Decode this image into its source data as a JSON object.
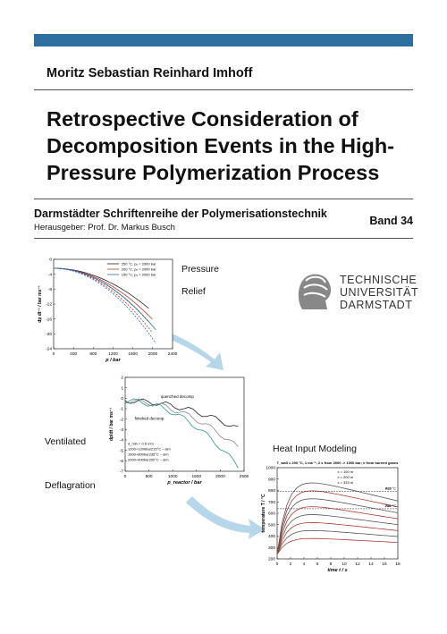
{
  "header": {
    "author": "Moritz Sebastian Reinhard Imhoff"
  },
  "title": {
    "lines": [
      "Retrospective Consideration of",
      "Decomposition Events in the High-",
      "Pressure Polymerization Process"
    ]
  },
  "series": {
    "name": "Darmstädter Schriftenreihe der Polymerisationstechnik",
    "editor": "Herausgeber: Prof. Dr. Markus Busch",
    "volume": "Band 34"
  },
  "logo": {
    "lines": [
      "TECHNISCHE",
      "UNIVERSITÄT",
      "DARMSTADT"
    ]
  },
  "figures": [
    {
      "caption": [
        "Pressure",
        "Relief"
      ],
      "xlabel": "p / bar",
      "ylabel": "dp dt⁻¹ / bar ms⁻¹",
      "xticks": [
        0,
        400,
        800,
        1200,
        1600,
        2000,
        2400
      ],
      "yticks": [
        0,
        -4,
        -8,
        -12,
        -16,
        -20,
        -24
      ],
      "legend": [
        "250 °C, p₀ = 2000 bar",
        "200 °C, p₀ = 2000 bar",
        "150 °C, p₀ = 2000 bar"
      ]
    },
    {
      "caption": [
        "Ventilated",
        "Deflagration"
      ],
      "xlabel": "p_reactor / bar",
      "ylabel": "dp/dt / bar ms⁻¹",
      "xticks": [
        0,
        500,
        1000,
        1500,
        2000,
        2500
      ],
      "yticks": [
        2,
        1,
        0,
        -1,
        -2,
        -3,
        -4,
        -5,
        -6,
        -7
      ],
      "legend": [
        "d_min = 0.6 mm",
        "1200+1200bar215°C – sim",
        "1600+800bar235°C – sim",
        "2000+400bar200°C – sim"
      ],
      "annotations": [
        "quenched decomp",
        "finished decomp"
      ]
    },
    {
      "caption": [
        "Heat Input Modeling"
      ],
      "xlabel": "time t / s",
      "ylabel": "temperature T / °C",
      "xticks": [
        0,
        2,
        4,
        6,
        8,
        10,
        12,
        14,
        16,
        18
      ],
      "yticks": [
        200,
        300,
        400,
        500,
        600,
        700,
        800,
        900,
        1000
      ],
      "heading": "T_wall = 200 °C, 1 ms⁻¹; 2 s from 2000 -> 1000 bar; x from burned gases",
      "legend": [
        "x = 100 m",
        "x = 200 m",
        "x = 333 m"
      ],
      "annotations": [
        "Ac3",
        "910 °C",
        "Ac1",
        "740 °C"
      ]
    }
  ]
}
